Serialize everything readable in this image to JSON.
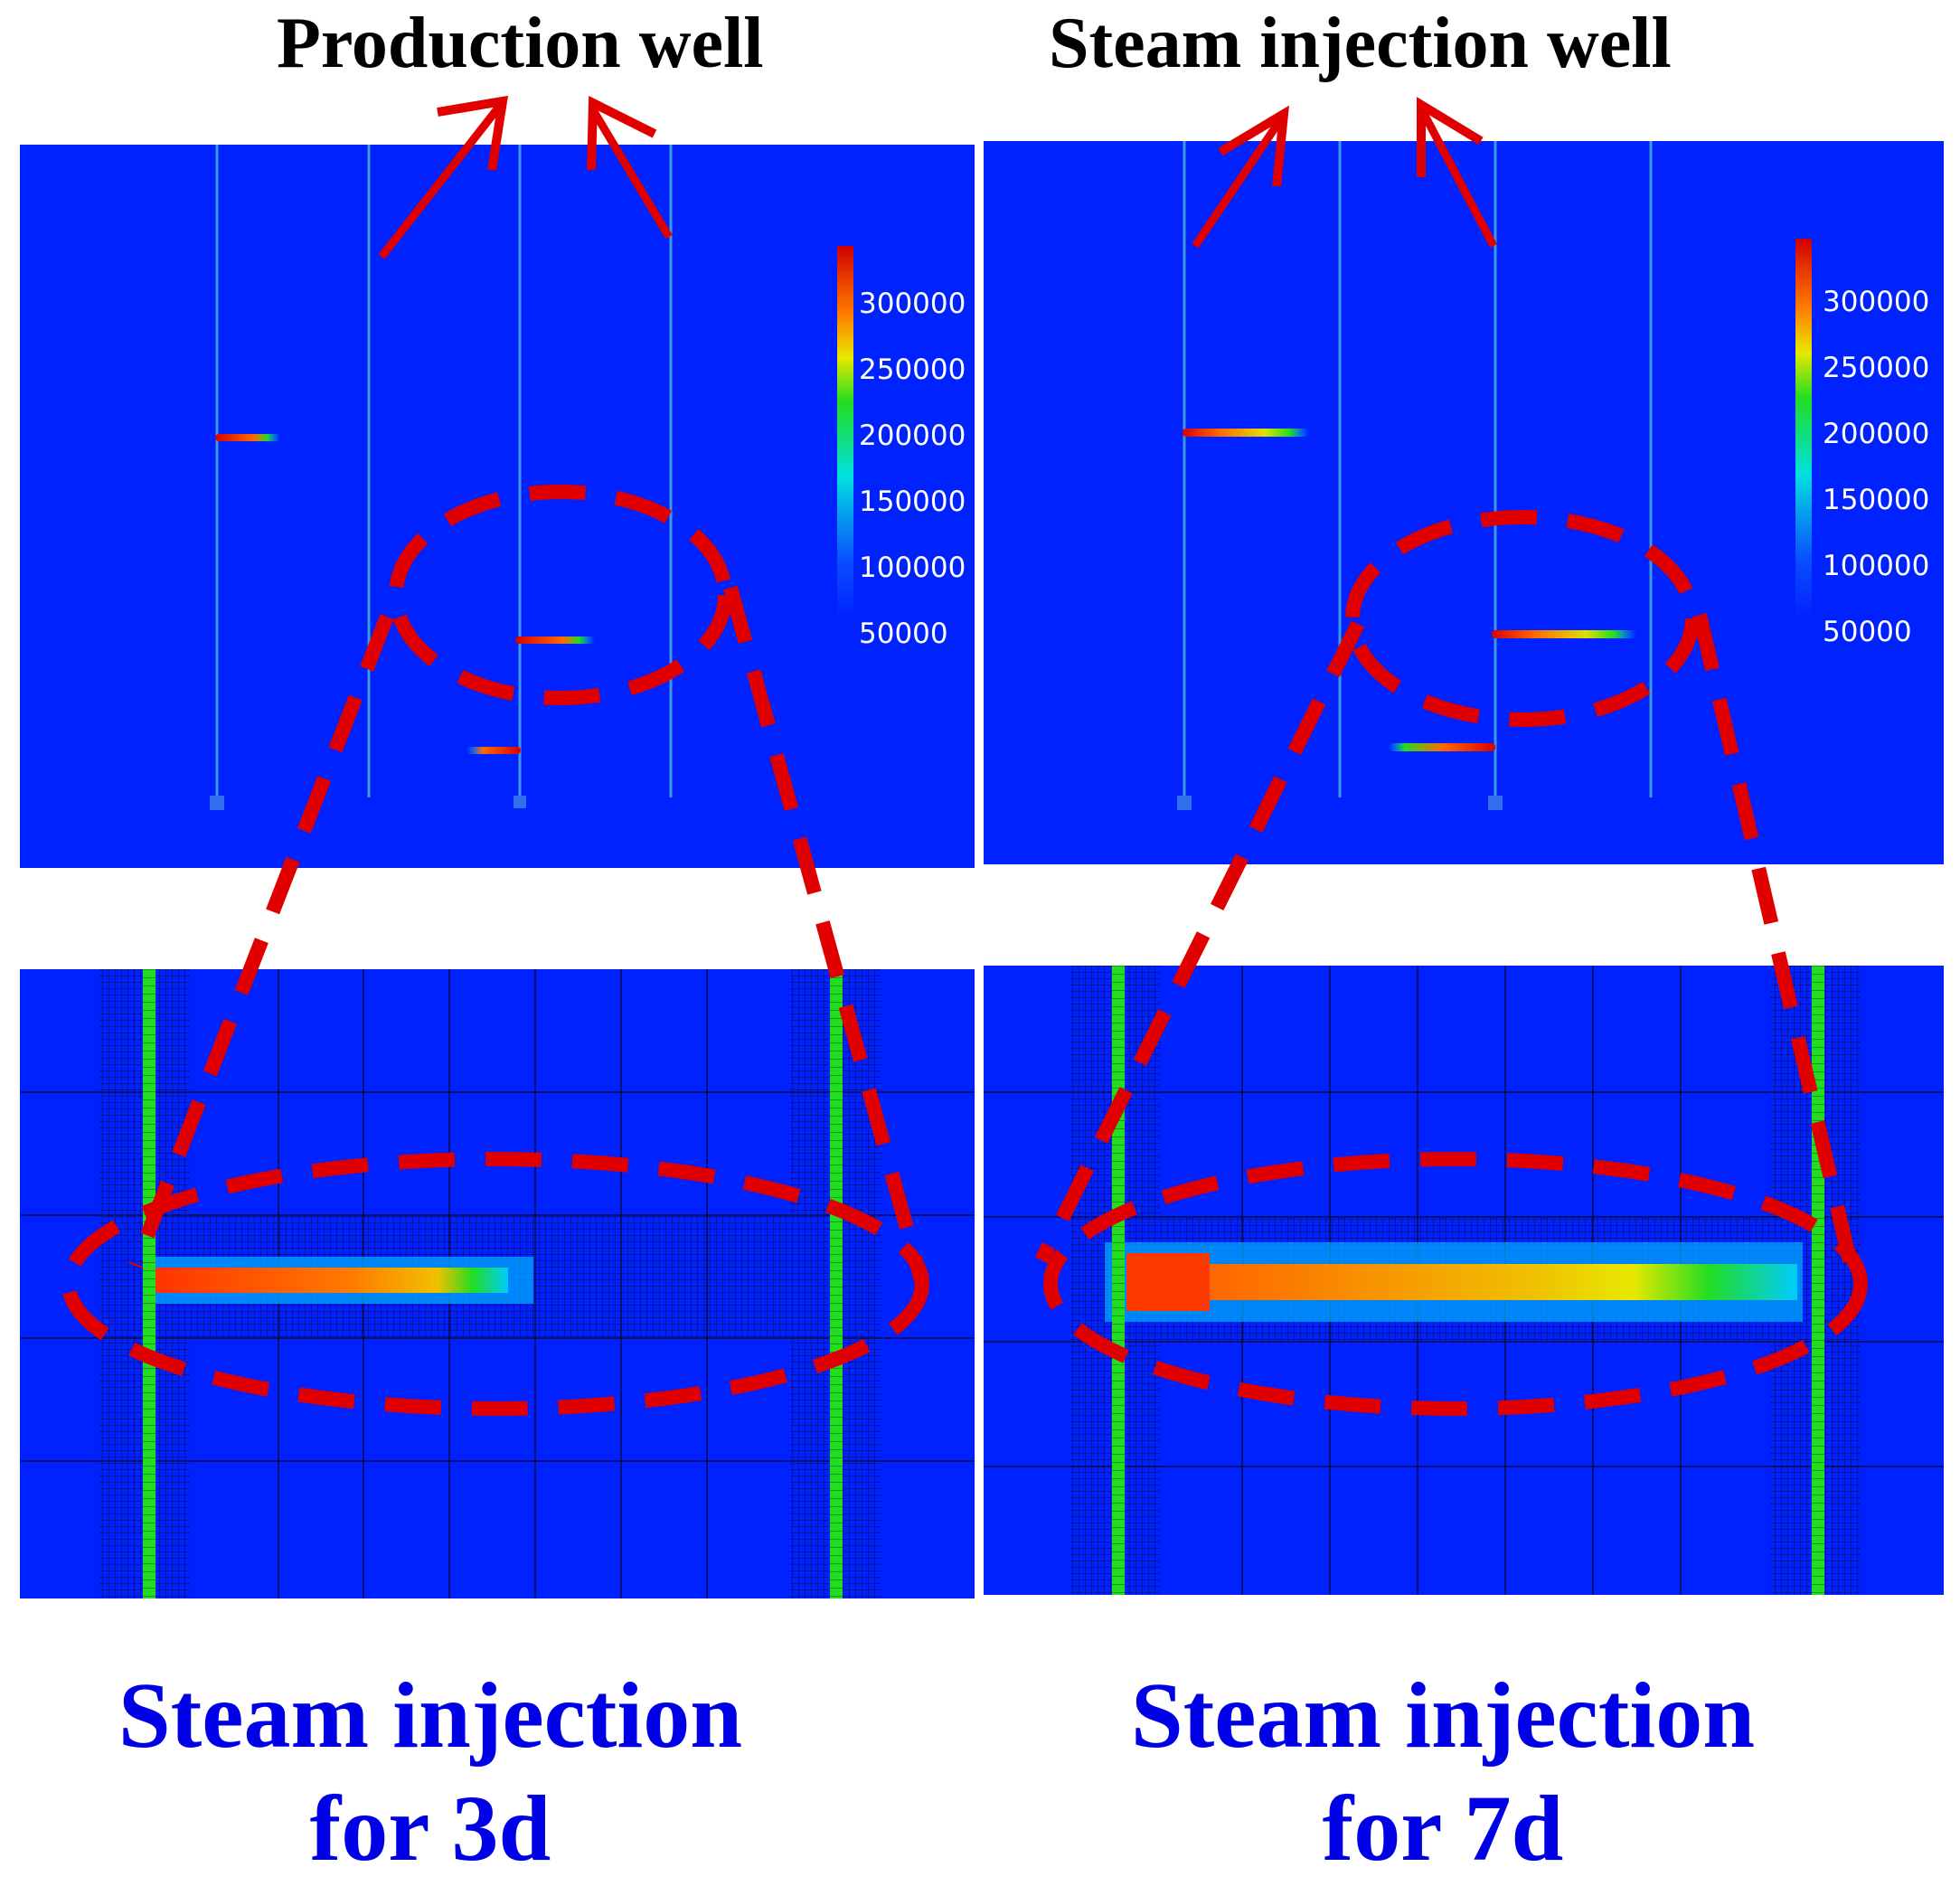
{
  "labels": {
    "production_well": "Production well",
    "steam_injection_well": "Steam injection well"
  },
  "captions": {
    "left": {
      "line1": "Steam injection",
      "line2": "for 3d"
    },
    "right": {
      "line1": "Steam injection",
      "line2": "for 7d"
    }
  },
  "colorbar": {
    "ticks": [
      "300000",
      "250000",
      "200000",
      "150000",
      "100000",
      "50000"
    ]
  },
  "colors": {
    "field_background": "#0022ff",
    "annotation_red": "#e00000",
    "well_green": "#22dd22",
    "caption_blue": "#0000e6"
  }
}
